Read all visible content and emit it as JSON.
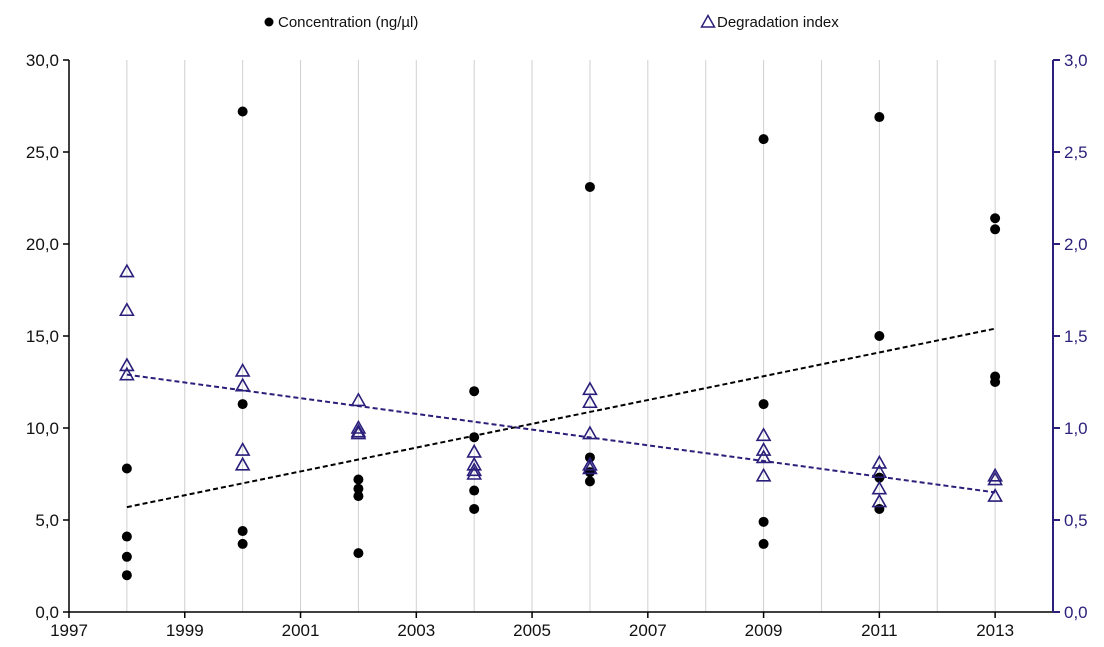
{
  "chart_data": {
    "type": "scatter",
    "x_axis": {
      "range": [
        1997,
        2014
      ],
      "ticks": [
        1997,
        1999,
        2001,
        2003,
        2005,
        2007,
        2009,
        2011,
        2013
      ],
      "tick_labels": [
        "1997",
        "1999",
        "2001",
        "2003",
        "2005",
        "2007",
        "2009",
        "2011",
        "2013"
      ],
      "gridlines_every": 1,
      "grid": true
    },
    "y_left": {
      "range": [
        0,
        30
      ],
      "ticks": [
        0,
        5,
        10,
        15,
        20,
        25,
        30
      ],
      "tick_labels": [
        "0,0",
        "5,0",
        "10,0",
        "15,0",
        "20,0",
        "25,0",
        "30,0"
      ]
    },
    "y_right": {
      "range": [
        0,
        3
      ],
      "ticks": [
        0,
        0.5,
        1,
        1.5,
        2,
        2.5,
        3
      ],
      "tick_labels": [
        "0,0",
        "0,5",
        "1,0",
        "1,5",
        "2,0",
        "2,5",
        "3,0"
      ]
    },
    "legend_position": "top",
    "series": [
      {
        "name": "Concentration (ng/µl)",
        "axis": "left",
        "marker": "filled-circle",
        "color": "#000000",
        "points": [
          [
            1998,
            7.8
          ],
          [
            1998,
            4.1
          ],
          [
            1998,
            3.0
          ],
          [
            1998,
            2.0
          ],
          [
            2000,
            27.2
          ],
          [
            2000,
            11.3
          ],
          [
            2000,
            4.4
          ],
          [
            2000,
            3.7
          ],
          [
            2002,
            7.2
          ],
          [
            2002,
            6.7
          ],
          [
            2002,
            6.3
          ],
          [
            2002,
            3.2
          ],
          [
            2004,
            12.0
          ],
          [
            2004,
            9.5
          ],
          [
            2004,
            6.6
          ],
          [
            2004,
            5.6
          ],
          [
            2006,
            23.1
          ],
          [
            2006,
            8.4
          ],
          [
            2006,
            7.6
          ],
          [
            2006,
            7.1
          ],
          [
            2009,
            25.7
          ],
          [
            2009,
            11.3
          ],
          [
            2009,
            4.9
          ],
          [
            2009,
            3.7
          ],
          [
            2011,
            26.9
          ],
          [
            2011,
            15.0
          ],
          [
            2011,
            7.3
          ],
          [
            2011,
            5.6
          ],
          [
            2013,
            21.4
          ],
          [
            2013,
            20.8
          ],
          [
            2013,
            12.8
          ],
          [
            2013,
            12.5
          ]
        ],
        "trendline": {
          "style": "dashed",
          "color": "#000000",
          "x": [
            1998,
            2013
          ],
          "y": [
            5.7,
            15.4
          ]
        }
      },
      {
        "name": "Degradation index",
        "axis": "right",
        "marker": "open-triangle",
        "color": "#2a1f7a",
        "points": [
          [
            1998,
            1.85
          ],
          [
            1998,
            1.64
          ],
          [
            1998,
            1.34
          ],
          [
            1998,
            1.29
          ],
          [
            2000,
            1.31
          ],
          [
            2000,
            1.23
          ],
          [
            2000,
            0.88
          ],
          [
            2000,
            0.8
          ],
          [
            2002,
            1.15
          ],
          [
            2002,
            1.0
          ],
          [
            2002,
            0.98
          ],
          [
            2002,
            0.97
          ],
          [
            2004,
            0.87
          ],
          [
            2004,
            0.8
          ],
          [
            2004,
            0.77
          ],
          [
            2004,
            0.75
          ],
          [
            2006,
            1.21
          ],
          [
            2006,
            1.14
          ],
          [
            2006,
            0.97
          ],
          [
            2006,
            0.8
          ],
          [
            2006,
            0.78
          ],
          [
            2009,
            0.96
          ],
          [
            2009,
            0.88
          ],
          [
            2009,
            0.84
          ],
          [
            2009,
            0.74
          ],
          [
            2011,
            0.81
          ],
          [
            2011,
            0.76
          ],
          [
            2011,
            0.67
          ],
          [
            2011,
            0.6
          ],
          [
            2013,
            0.74
          ],
          [
            2013,
            0.72
          ],
          [
            2013,
            0.63
          ]
        ],
        "trendline": {
          "style": "dashed",
          "color": "#2a1f7a",
          "x": [
            1998,
            2013
          ],
          "y": [
            1.29,
            0.65
          ]
        }
      }
    ]
  }
}
